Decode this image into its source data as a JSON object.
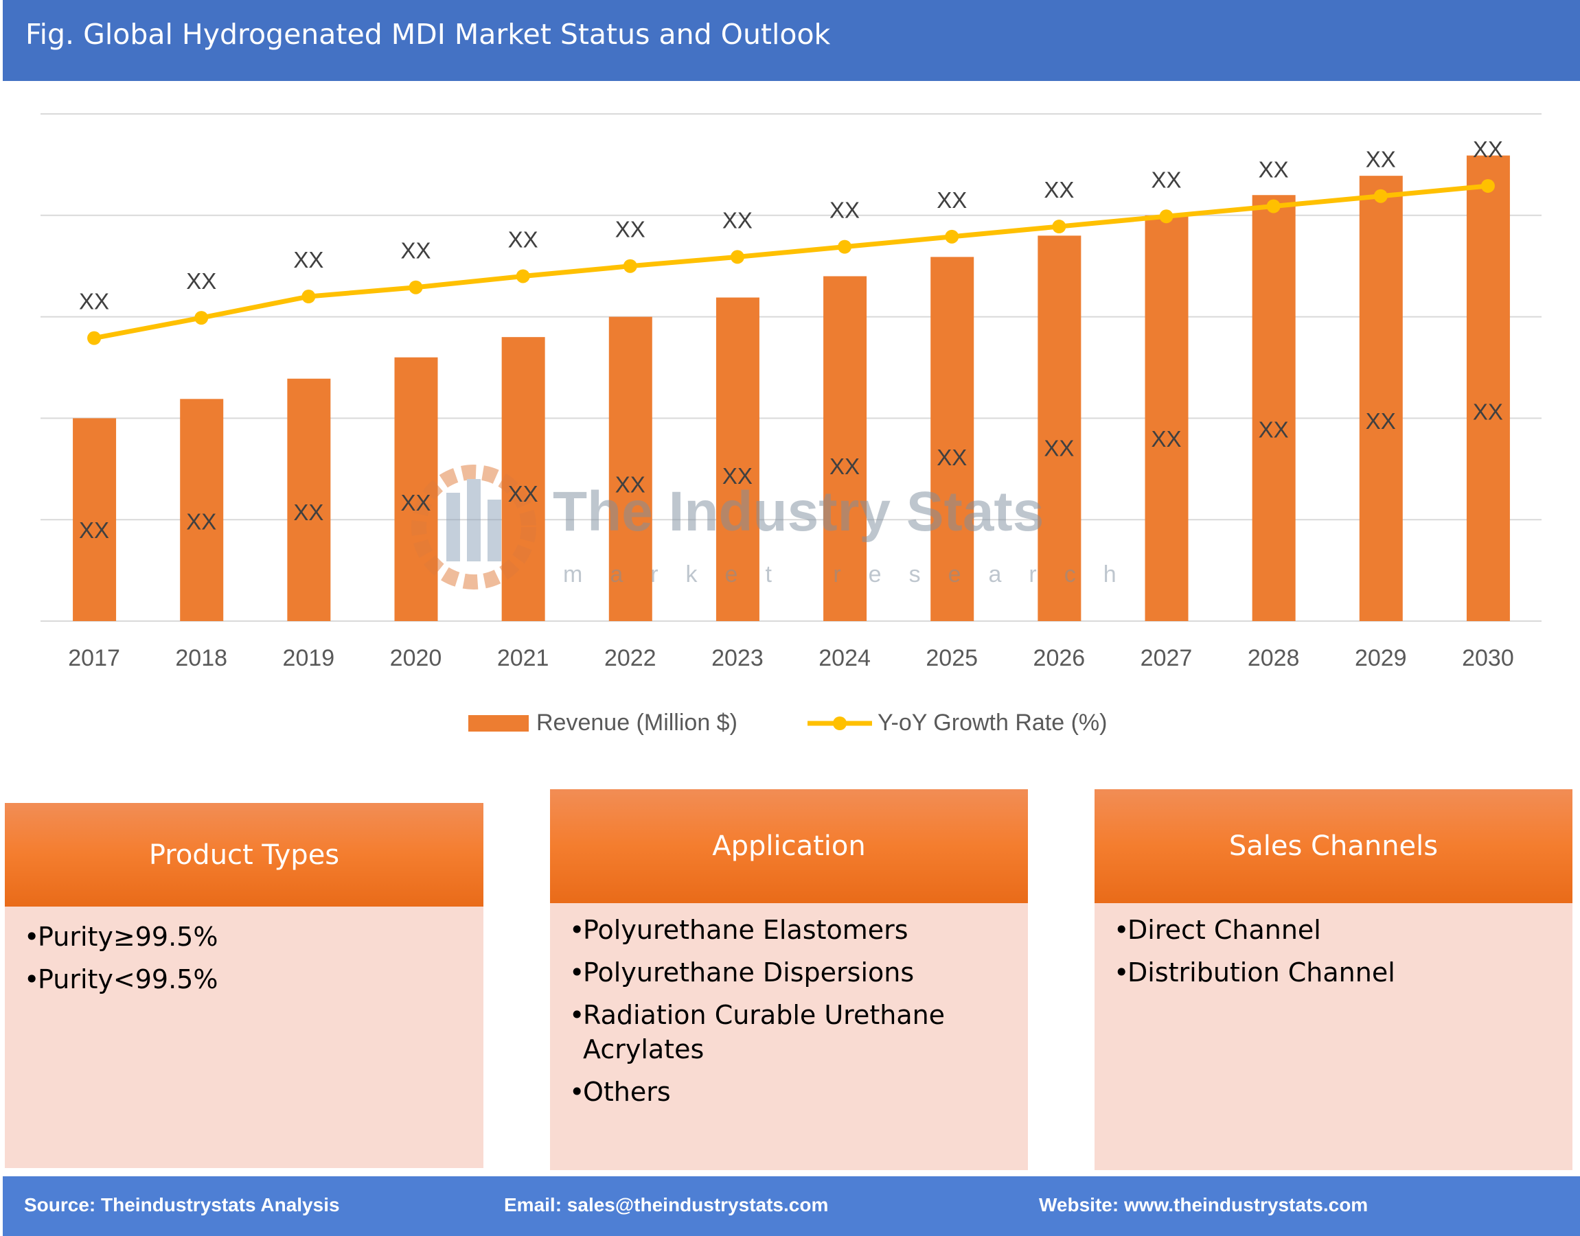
{
  "header": {
    "title": "Fig. Global Hydrogenated MDI Market Status and Outlook"
  },
  "watermark": {
    "name": "The Industry Stats",
    "tagline": "market research"
  },
  "chart_data": {
    "type": "bar+line",
    "title": "",
    "xlabel": "",
    "ylabel": "",
    "categories": [
      "2017",
      "2018",
      "2019",
      "2020",
      "2021",
      "2022",
      "2023",
      "2024",
      "2025",
      "2026",
      "2027",
      "2028",
      "2029",
      "2030"
    ],
    "ylim": [
      0,
      5
    ],
    "grid": true,
    "legend_position": "bottom",
    "series": [
      {
        "name": "Revenue (Million $)",
        "type": "bar",
        "color": "#ed7d31",
        "values": [
          2.0,
          2.19,
          2.39,
          2.6,
          2.8,
          3.0,
          3.19,
          3.4,
          3.59,
          3.8,
          4.0,
          4.2,
          4.39,
          4.59
        ],
        "data_labels": [
          "XX",
          "XX",
          "XX",
          "XX",
          "XX",
          "XX",
          "XX",
          "XX",
          "XX",
          "XX",
          "XX",
          "XX",
          "XX",
          "XX"
        ]
      },
      {
        "name": "Y-oY Growth Rate (%)",
        "type": "line",
        "color": "#ffc000",
        "values": [
          2.79,
          2.99,
          3.2,
          3.29,
          3.4,
          3.5,
          3.59,
          3.69,
          3.79,
          3.89,
          3.99,
          4.09,
          4.19,
          4.29
        ],
        "data_labels": [
          "XX",
          "XX",
          "XX",
          "XX",
          "XX",
          "XX",
          "XX",
          "XX",
          "XX",
          "XX",
          "XX",
          "XX",
          "XX",
          "XX"
        ]
      }
    ]
  },
  "panels": [
    {
      "title": "Product Types",
      "items": [
        "Purity≥99.5%",
        "Purity<99.5%"
      ]
    },
    {
      "title": "Application",
      "items": [
        "Polyurethane Elastomers",
        "Polyurethane Dispersions",
        "Radiation Curable Urethane Acrylates",
        "Others"
      ]
    },
    {
      "title": "Sales Channels",
      "items": [
        "Direct Channel",
        "Distribution Channel"
      ]
    }
  ],
  "footer": {
    "source": "Source: Theindustrystats Analysis",
    "email": "Email: sales@theindustrystats.com",
    "website": "Website: www.theindustrystats.com"
  }
}
